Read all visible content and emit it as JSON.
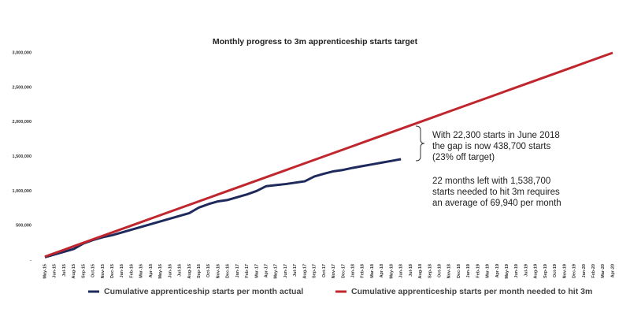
{
  "chart_data": {
    "type": "line",
    "title": "Monthly progress to 3m apprenticeship starts target",
    "categories": [
      "May-15",
      "Jun-15",
      "Jul-15",
      "Aug-15",
      "Sep-15",
      "Oct-15",
      "Nov-15",
      "Dec-15",
      "Jan-16",
      "Feb-16",
      "Mar-16",
      "Apr-16",
      "May-16",
      "Jun-16",
      "Jul-16",
      "Aug-16",
      "Sep-16",
      "Oct-16",
      "Nov-16",
      "Dec-16",
      "Jan-17",
      "Feb-17",
      "Mar-17",
      "Apr-17",
      "May-17",
      "Jun-17",
      "Jul-17",
      "Aug-17",
      "Sep-17",
      "Oct-17",
      "Nov-17",
      "Dec-17",
      "Jan-18",
      "Feb-18",
      "Mar-18",
      "Apr-18",
      "May-18",
      "Jun-18",
      "Jul-18",
      "Aug-18",
      "Sep-18",
      "Oct-18",
      "Nov-18",
      "Dec-18",
      "Jan-19",
      "Feb-19",
      "Mar-19",
      "Apr-19",
      "May-19",
      "Jun-19",
      "Jul-19",
      "Aug-19",
      "Sep-19",
      "Oct-19",
      "Nov-19",
      "Dec-19",
      "Jan-20",
      "Feb-20",
      "Mar-20",
      "Apr-20"
    ],
    "series": [
      {
        "name": "Cumulative apprenticeship starts per month actual",
        "color": "#1f2a5c",
        "values": [
          40000,
          80000,
          120000,
          160000,
          240000,
          290000,
          330000,
          360000,
          400000,
          440000,
          480000,
          520000,
          560000,
          600000,
          640000,
          680000,
          760000,
          810000,
          850000,
          870000,
          910000,
          950000,
          1000000,
          1070000,
          1085000,
          1100000,
          1120000,
          1140000,
          1210000,
          1250000,
          1285000,
          1305000,
          1335000,
          1360000,
          1385000,
          1410000,
          1435000,
          1460000,
          null,
          null,
          null,
          null,
          null,
          null,
          null,
          null,
          null,
          null,
          null,
          null,
          null,
          null,
          null,
          null,
          null,
          null,
          null,
          null,
          null,
          null
        ]
      },
      {
        "name": "Cumulative apprenticeship starts per month needed to hit 3m",
        "color": "#c0262d",
        "values": [
          50000,
          100000,
          150000,
          200000,
          250000,
          300000,
          350000,
          400000,
          450000,
          500000,
          550000,
          600000,
          650000,
          700000,
          750000,
          800000,
          850000,
          900000,
          950000,
          1000000,
          1050000,
          1100000,
          1150000,
          1200000,
          1250000,
          1300000,
          1350000,
          1400000,
          1450000,
          1500000,
          1550000,
          1600000,
          1650000,
          1700000,
          1750000,
          1800000,
          1850000,
          1900000,
          1950000,
          2000000,
          2050000,
          2100000,
          2150000,
          2200000,
          2250000,
          2300000,
          2350000,
          2400000,
          2450000,
          2500000,
          2550000,
          2600000,
          2650000,
          2700000,
          2750000,
          2800000,
          2850000,
          2900000,
          2950000,
          3000000
        ]
      }
    ],
    "ylim": [
      0,
      3000000
    ],
    "yticks": [
      {
        "value": 0,
        "label": "-"
      },
      {
        "value": 500000,
        "label": "500,000"
      },
      {
        "value": 1000000,
        "label": "1,000,000"
      },
      {
        "value": 1500000,
        "label": "1,500,000"
      },
      {
        "value": 2000000,
        "label": "2,000,000"
      },
      {
        "value": 2500000,
        "label": "2,500,000"
      },
      {
        "value": 3000000,
        "label": "3,000,000"
      }
    ],
    "annotations": [
      [
        "With 22,300 starts in June 2018",
        "the gap is now 438,700 starts",
        "(23% off target)"
      ],
      [
        "22 months left with 1,538,700",
        "starts needed to hit 3m requires",
        "an average of 69,940 per month"
      ]
    ],
    "legend": "bottom"
  }
}
